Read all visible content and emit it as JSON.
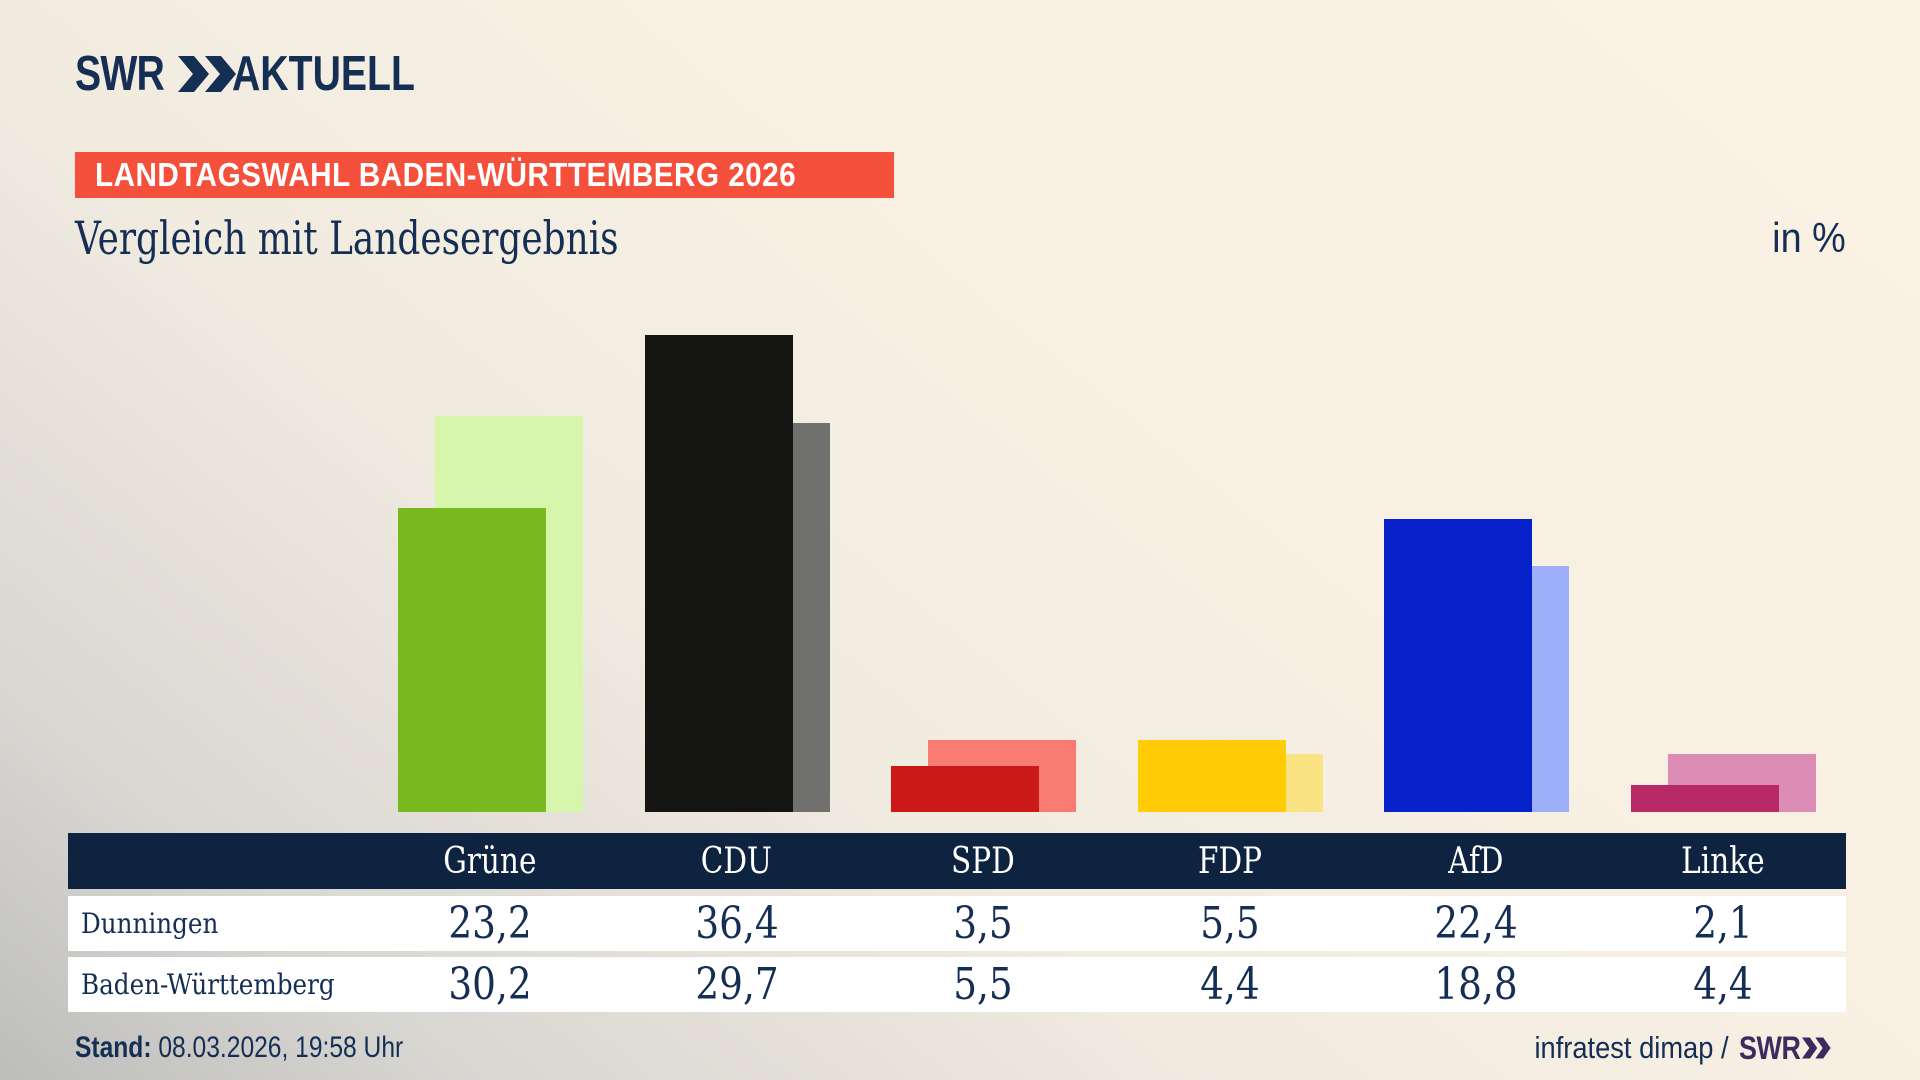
{
  "header": {
    "logo_swr": "SWR",
    "logo_aktuell": "AKTUELL",
    "badge": "LANDTAGSWAHL BADEN-WÜRTTEMBERG 2026",
    "title": "Vergleich mit Landesergebnis",
    "unit": "in %"
  },
  "chart_data": {
    "type": "bar",
    "title": "Vergleich mit Landesergebnis",
    "unit": "in %",
    "categories": [
      "Grüne",
      "CDU",
      "SPD",
      "FDP",
      "AfD",
      "Linke"
    ],
    "series": [
      {
        "name": "Dunningen",
        "values": [
          23.2,
          36.4,
          3.5,
          5.5,
          22.4,
          2.1
        ],
        "display": [
          "23,2",
          "36,4",
          "3,5",
          "5,5",
          "22,4",
          "2,1"
        ],
        "colors": [
          "#77B91E",
          "#141413",
          "#CB1917",
          "#FFCC05",
          "#0722CB",
          "#B72A67"
        ]
      },
      {
        "name": "Baden-Württemberg",
        "values": [
          30.2,
          29.7,
          5.5,
          4.4,
          18.8,
          4.4
        ],
        "display": [
          "30,2",
          "29,7",
          "5,5",
          "4,4",
          "18,8",
          "4,4"
        ],
        "colors": [
          "#D6F6AB",
          "#70706E",
          "#F97C72",
          "#FAE382",
          "#9DAFF8",
          "#DB8CB4"
        ]
      }
    ],
    "axis": "hidden",
    "grid": false,
    "legend_position": "table-below"
  },
  "footer": {
    "stand_label": "Stand:",
    "stand_value": " 08.03.2026, 19:58 Uhr",
    "source": "infratest dimap /",
    "source_logo": "SWR"
  },
  "colors": {
    "navy_text": "#152E54",
    "table_header_bg": "#0D2340",
    "badge_red": "#F4503C",
    "footer_logo_purple": "#3F2A5F",
    "row_bg": "#FFFFFF"
  }
}
